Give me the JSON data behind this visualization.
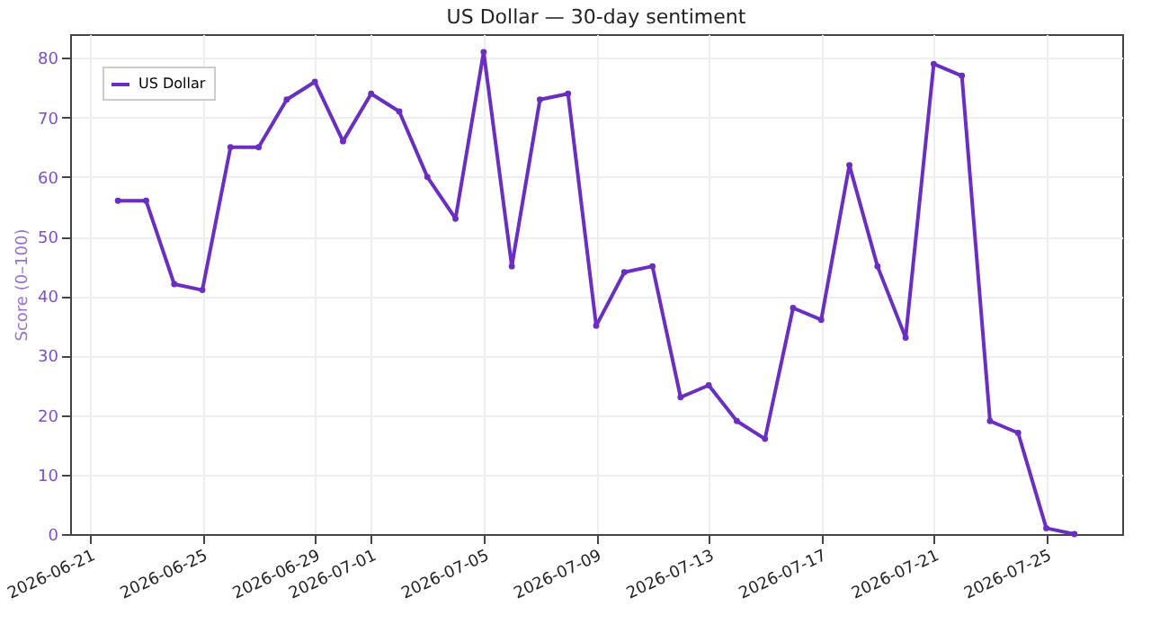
{
  "chart_data": {
    "type": "line",
    "title": "US Dollar — 30-day sentiment",
    "ylabel": "Score (0–100)",
    "x": [
      "2026-06-22",
      "2026-06-23",
      "2026-06-24",
      "2026-06-25",
      "2026-06-26",
      "2026-06-27",
      "2026-06-28",
      "2026-06-29",
      "2026-06-30",
      "2026-07-01",
      "2026-07-02",
      "2026-07-03",
      "2026-07-04",
      "2026-07-05",
      "2026-07-06",
      "2026-07-07",
      "2026-07-08",
      "2026-07-09",
      "2026-07-10",
      "2026-07-11",
      "2026-07-12",
      "2026-07-13",
      "2026-07-14",
      "2026-07-15",
      "2026-07-16",
      "2026-07-17",
      "2026-07-18",
      "2026-07-19",
      "2026-07-20",
      "2026-07-21",
      "2026-07-22",
      "2026-07-23",
      "2026-07-24",
      "2026-07-25",
      "2026-07-26"
    ],
    "series": [
      {
        "name": "US Dollar",
        "color": "#6a2fc2",
        "values": [
          56,
          56,
          42,
          41,
          65,
          65,
          73,
          76,
          66,
          74,
          71,
          60,
          53,
          81,
          45,
          73,
          74,
          35,
          44,
          45,
          23,
          25,
          19,
          16,
          38,
          36,
          62,
          45,
          33,
          79,
          77,
          19,
          17,
          1,
          0
        ]
      }
    ],
    "xlim": [
      "2026-06-20T07:12",
      "2026-07-27T16:48"
    ],
    "xticks": [
      "2026-06-21",
      "2026-06-25",
      "2026-06-29",
      "2026-07-01",
      "2026-07-05",
      "2026-07-09",
      "2026-07-13",
      "2026-07-17",
      "2026-07-21",
      "2026-07-25"
    ],
    "ylim": [
      0,
      84
    ],
    "yticks": [
      0,
      10,
      20,
      30,
      40,
      50,
      60,
      70,
      80
    ],
    "grid": true,
    "legend": "top left",
    "marker": "circle",
    "line_style": "solid"
  }
}
